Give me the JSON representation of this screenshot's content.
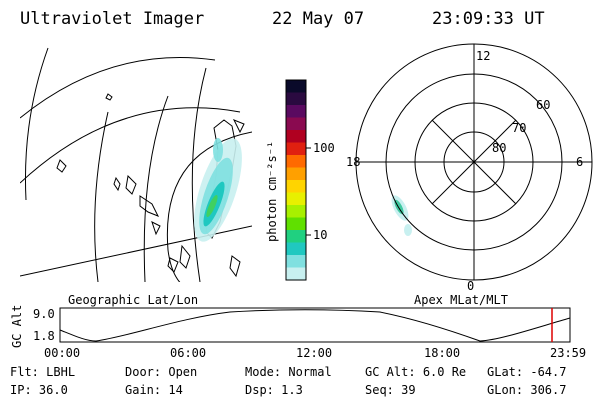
{
  "header": {
    "title": "Ultraviolet Imager",
    "date": "22 May 07",
    "time": "23:09:33 UT"
  },
  "map_left": {
    "caption": "Geographic Lat/Lon"
  },
  "colorbar": {
    "label": "photon cm⁻²s⁻¹",
    "ticks": [
      "100",
      "10"
    ],
    "colors": [
      "#0a0a2a",
      "#2a0a40",
      "#5a0a60",
      "#8a0a50",
      "#b00020",
      "#e02010",
      "#ff6a00",
      "#ffa000",
      "#ffd400",
      "#e8f000",
      "#a8f000",
      "#60e000",
      "#20d080",
      "#20c8c0",
      "#80e0e0",
      "#c8f0f0"
    ]
  },
  "polar": {
    "caption": "Apex MLat/MLT",
    "labels": {
      "top": "12",
      "left": "18",
      "right": "6",
      "bottom": "0"
    },
    "rings": [
      "60",
      "70",
      "80"
    ]
  },
  "altitude": {
    "ylabel": "GC Alt",
    "y_ticks": [
      "9.0",
      "1.8"
    ],
    "x_ticks": [
      "00:00",
      "06:00",
      "12:00",
      "18:00",
      "23:59"
    ],
    "marker_color": "#dd0000"
  },
  "info": {
    "row1": [
      {
        "key": "Flt:",
        "value": "LBHL"
      },
      {
        "key": "Door:",
        "value": "Open"
      },
      {
        "key": "Mode:",
        "value": "Normal"
      },
      {
        "key": "GC Alt:",
        "value": "6.0 Re"
      },
      {
        "key": "GLat:",
        "value": "-64.7"
      }
    ],
    "row2": [
      {
        "key": "IP:",
        "value": "36.0"
      },
      {
        "key": "Gain:",
        "value": "14"
      },
      {
        "key": "Dsp:",
        "value": "1.3"
      },
      {
        "key": "Seq:",
        "value": "39"
      },
      {
        "key": "GLon:",
        "value": "306.7"
      }
    ]
  }
}
